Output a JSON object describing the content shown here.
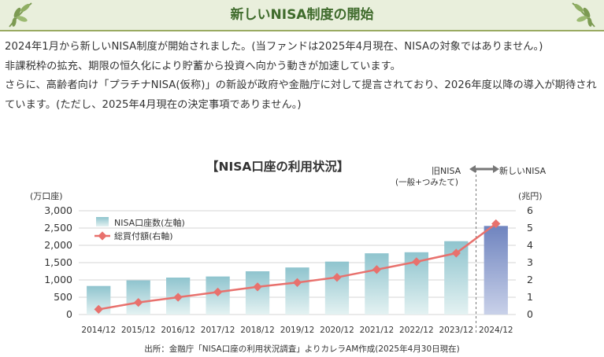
{
  "header": {
    "title": "新しいNISA制度の開始"
  },
  "body": {
    "paragraphs": [
      "2024年1月から新しいNISA制度が開始されました。(当ファンドは2025年4月現在、NISAの対象ではありません。)",
      "非課税枠の拡充、期限の恒久化により貯蓄から投資へ向かう動きが加速しています。",
      "さらに、高齢者向け「プラチナNISA(仮称)」の新設が政府や金融庁に対して提言されており、2026年度以降の導入が期待されています。(ただし、2025年4月現在の決定事項でありません。)"
    ]
  },
  "chart_data": {
    "type": "bar",
    "title": "【NISA口座の利用状況】",
    "categories": [
      "2014/12",
      "2015/12",
      "2016/12",
      "2017/12",
      "2018/12",
      "2019/12",
      "2020/12",
      "2021/12",
      "2022/12",
      "2023/12",
      "2024/12"
    ],
    "series": [
      {
        "name": "NISA口座数(左軸)",
        "type": "bar",
        "axis": "left",
        "values": [
          825,
          987,
          1068,
          1100,
          1250,
          1360,
          1530,
          1770,
          1800,
          2120,
          2560
        ],
        "color": "#a9d3da",
        "highlight_color": "#8e9ecb"
      },
      {
        "name": "総買付額(右軸)",
        "type": "line",
        "axis": "right",
        "values": [
          0.3,
          0.7,
          1.0,
          1.3,
          1.6,
          1.85,
          2.15,
          2.6,
          3.05,
          3.55,
          5.25
        ],
        "color": "#e8716d"
      }
    ],
    "y_left": {
      "label": "(万口座)",
      "ylim": [
        0,
        3000
      ],
      "ticks": [
        "3,000",
        "2,500",
        "2,000",
        "1,500",
        "1,000",
        "500",
        "0"
      ]
    },
    "y_right": {
      "label": "(兆円)",
      "ylim": [
        0,
        6
      ],
      "ticks": [
        "6",
        "5",
        "4",
        "3",
        "2",
        "1",
        "0"
      ]
    },
    "annotations": {
      "old_label": "旧NISA",
      "old_sub": "(一般+つみたて)",
      "new_label": "新しいNISA"
    },
    "legend": "top-left",
    "source": "出所：金融庁「NISA口座の利用状況調査」よりカレラAM作成(2025年4月30日現在)"
  }
}
